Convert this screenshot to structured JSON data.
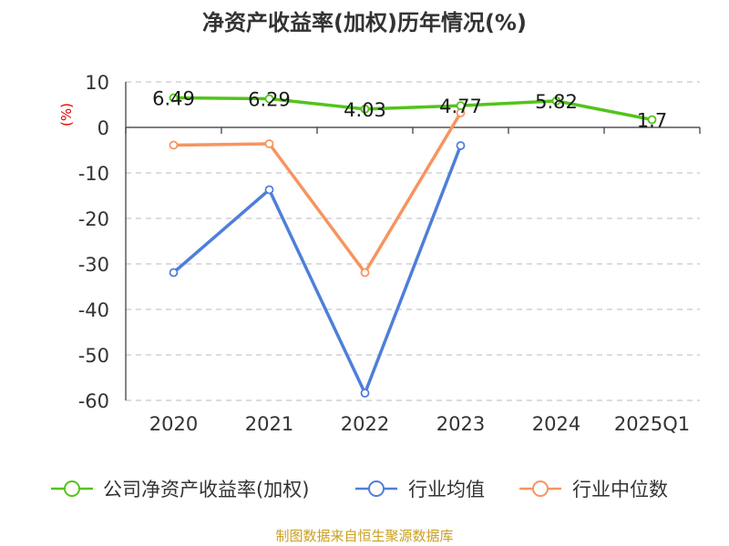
{
  "chart_data": {
    "type": "line",
    "title": "净资产收益率(加权)历年情况(%)",
    "ylabel": "(%)",
    "source": "制图数据来自恒生聚源数据库",
    "categories": [
      "2020",
      "2021",
      "2022",
      "2023",
      "2024",
      "2025Q1"
    ],
    "ylim": [
      -60,
      10
    ],
    "yticks": [
      10,
      0,
      -10,
      -20,
      -30,
      -40,
      -50,
      -60
    ],
    "grid": true,
    "legend_position": "bottom",
    "series": [
      {
        "name": "公司净资产收益率(加权)",
        "color": "#52c41a",
        "values": [
          6.49,
          6.29,
          4.03,
          4.77,
          5.82,
          1.7
        ],
        "labels": [
          "6.49",
          "6.29",
          "4.03",
          "4.77",
          "5.82",
          "1.7"
        ]
      },
      {
        "name": "行业均值",
        "color": "#4e7fd9",
        "values": [
          -31.9,
          -13.7,
          -58.4,
          -4.0,
          null,
          null
        ]
      },
      {
        "name": "行业中位数",
        "color": "#f79460",
        "values": [
          -3.9,
          -3.6,
          -31.9,
          3.2,
          null,
          null
        ]
      }
    ]
  }
}
